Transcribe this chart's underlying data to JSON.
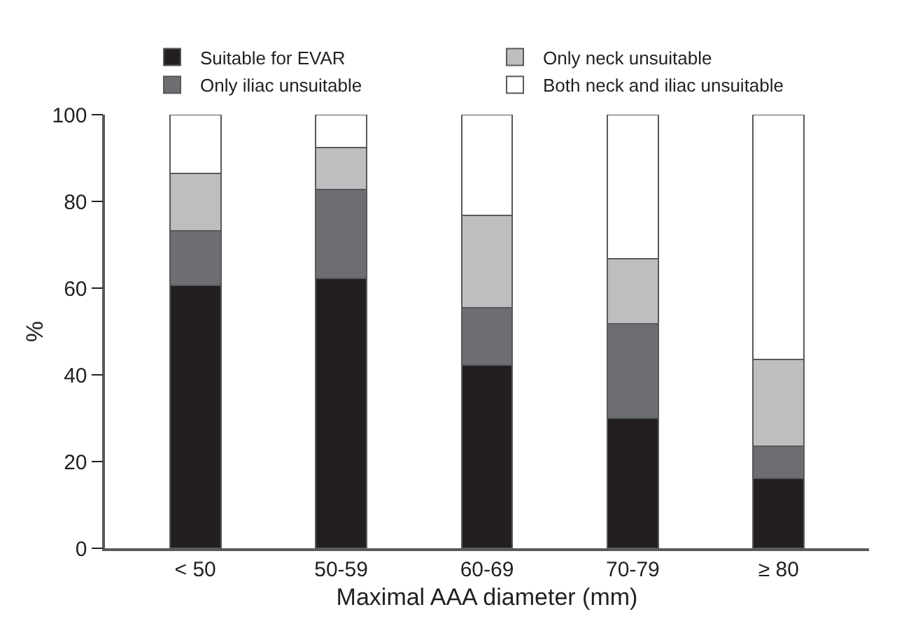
{
  "chart_data": {
    "type": "bar",
    "stacked": true,
    "xlabel": "Maximal AAA diameter (mm)",
    "ylabel": "%",
    "categories": [
      "< 50",
      "50-59",
      "60-69",
      "70-79",
      "≥ 80"
    ],
    "series": [
      {
        "name": "Suitable for EVAR",
        "color": "#231f20",
        "values": [
          60.6,
          62.2,
          42.3,
          30.0,
          16.1
        ]
      },
      {
        "name": "Only iliac unsuitable",
        "color": "#6d6e71",
        "values": [
          12.7,
          20.6,
          13.2,
          21.7,
          7.5
        ]
      },
      {
        "name": "Only neck unsuitable",
        "color": "#bcbec0",
        "values": [
          13.1,
          9.7,
          21.3,
          15.0,
          20.0
        ]
      },
      {
        "name": "Both neck and iliac unsuitable",
        "color": "#ffffff",
        "values": [
          13.6,
          7.5,
          23.2,
          33.3,
          56.4
        ]
      }
    ],
    "ylim": [
      0,
      100
    ],
    "yticks": [
      0,
      20,
      40,
      60,
      80,
      100
    ],
    "grid": false,
    "legend": "top"
  }
}
